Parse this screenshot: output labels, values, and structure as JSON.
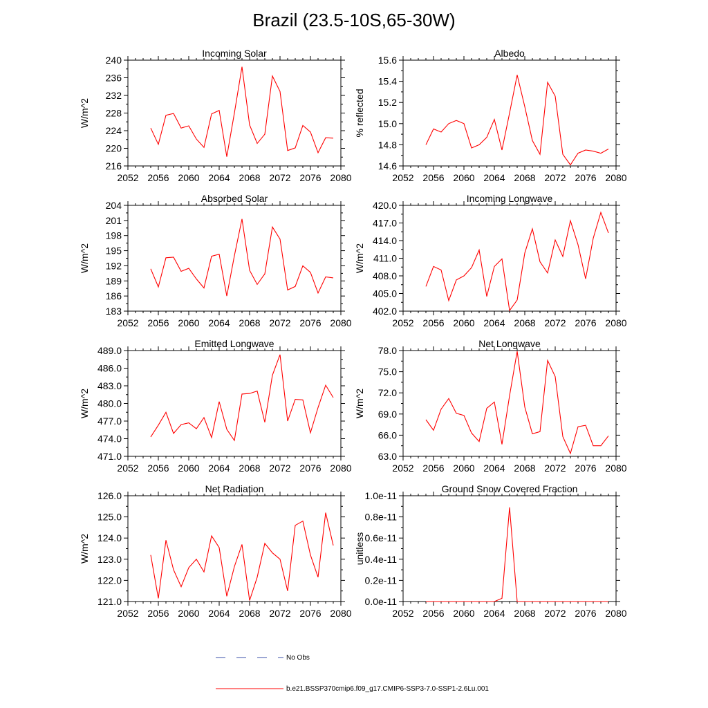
{
  "title": "Brazil (23.5-10S,65-30W)",
  "legend": {
    "no_obs_label": "No Obs",
    "no_obs_color": "#3a4fa8",
    "model_label": "b.e21.BSSP370cmip6.f09_g17.CMIP6-SSP3-7.0-SSP1-2.6Lu.001",
    "model_color": "#ff0000"
  },
  "chart_data": [
    {
      "type": "line",
      "title": "Incoming Solar",
      "ylabel": "W/m^2",
      "xlim": [
        2052,
        2080
      ],
      "ylim": [
        216,
        240
      ],
      "xticks": [
        2052,
        2056,
        2060,
        2064,
        2068,
        2072,
        2076,
        2080
      ],
      "yticks": [
        "216",
        "220",
        "224",
        "228",
        "232",
        "236",
        "240"
      ],
      "series": [
        {
          "x": [
            2055,
            2056,
            2057,
            2058,
            2059,
            2060,
            2061,
            2062,
            2063,
            2064,
            2065,
            2066,
            2067,
            2068,
            2069,
            2070,
            2071,
            2072,
            2073,
            2074,
            2075,
            2076,
            2077,
            2078,
            2079
          ],
          "values": [
            224.6,
            220.9,
            227.5,
            227.9,
            224.6,
            225.1,
            222.1,
            220.2,
            227.8,
            228.6,
            218.1,
            228.0,
            238.5,
            225.3,
            221.1,
            223.2,
            236.4,
            232.9,
            219.5,
            220.1,
            225.2,
            223.7,
            219.0,
            222.4,
            222.3
          ]
        }
      ]
    },
    {
      "type": "line",
      "title": "Albedo",
      "ylabel": "% reflected",
      "xlim": [
        2052,
        2080
      ],
      "ylim": [
        14.6,
        15.6
      ],
      "xticks": [
        2052,
        2056,
        2060,
        2064,
        2068,
        2072,
        2076,
        2080
      ],
      "yticks": [
        "14.6",
        "14.8",
        "15.0",
        "15.2",
        "15.4",
        "15.6"
      ],
      "series": [
        {
          "x": [
            2055,
            2056,
            2057,
            2058,
            2059,
            2060,
            2061,
            2062,
            2063,
            2064,
            2065,
            2066,
            2067,
            2068,
            2069,
            2070,
            2071,
            2072,
            2073,
            2074,
            2075,
            2076,
            2077,
            2078,
            2079
          ],
          "values": [
            14.8,
            14.95,
            14.92,
            15.0,
            15.03,
            15.0,
            14.77,
            14.8,
            14.87,
            15.04,
            14.75,
            15.1,
            15.46,
            15.16,
            14.84,
            14.71,
            15.39,
            15.26,
            14.71,
            14.61,
            14.72,
            14.75,
            14.74,
            14.72,
            14.76
          ]
        }
      ]
    },
    {
      "type": "line",
      "title": "Absorbed Solar",
      "ylabel": "W/m^2",
      "xlim": [
        2052,
        2080
      ],
      "ylim": [
        183,
        204
      ],
      "xticks": [
        2052,
        2056,
        2060,
        2064,
        2068,
        2072,
        2076,
        2080
      ],
      "yticks": [
        "183",
        "186",
        "189",
        "192",
        "195",
        "198",
        "201",
        "204"
      ],
      "series": [
        {
          "x": [
            2055,
            2056,
            2057,
            2058,
            2059,
            2060,
            2061,
            2062,
            2063,
            2064,
            2065,
            2066,
            2067,
            2068,
            2069,
            2070,
            2071,
            2072,
            2073,
            2074,
            2075,
            2076,
            2077,
            2078,
            2079
          ],
          "values": [
            191.4,
            187.8,
            193.6,
            193.7,
            190.9,
            191.5,
            189.4,
            187.6,
            193.9,
            194.3,
            186.0,
            194.0,
            201.3,
            191.1,
            188.3,
            190.4,
            199.7,
            197.3,
            187.2,
            187.9,
            192.0,
            190.7,
            186.6,
            189.8,
            189.6
          ]
        }
      ]
    },
    {
      "type": "line",
      "title": "Incoming Longwave",
      "ylabel": "W/m^2",
      "xlim": [
        2052,
        2080
      ],
      "ylim": [
        402,
        420
      ],
      "xticks": [
        2052,
        2056,
        2060,
        2064,
        2068,
        2072,
        2076,
        2080
      ],
      "yticks": [
        "402.0",
        "405.0",
        "408.0",
        "411.0",
        "414.0",
        "417.0",
        "420.0"
      ],
      "series": [
        {
          "x": [
            2055,
            2056,
            2057,
            2058,
            2059,
            2060,
            2061,
            2062,
            2063,
            2064,
            2065,
            2066,
            2067,
            2068,
            2069,
            2070,
            2071,
            2072,
            2073,
            2074,
            2075,
            2076,
            2077,
            2078,
            2079
          ],
          "values": [
            406.2,
            409.6,
            409.0,
            403.8,
            407.3,
            408.0,
            409.4,
            412.4,
            404.5,
            409.6,
            410.9,
            402.1,
            403.9,
            411.9,
            416.0,
            410.4,
            408.5,
            414.1,
            411.3,
            417.4,
            413.3,
            407.5,
            414.4,
            418.8,
            415.3
          ]
        }
      ]
    },
    {
      "type": "line",
      "title": "Emitted Longwave",
      "ylabel": "W/m^2",
      "xlim": [
        2052,
        2080
      ],
      "ylim": [
        471,
        489
      ],
      "xticks": [
        2052,
        2056,
        2060,
        2064,
        2068,
        2072,
        2076,
        2080
      ],
      "yticks": [
        "471.0",
        "474.0",
        "477.0",
        "480.0",
        "483.0",
        "486.0",
        "489.0"
      ],
      "series": [
        {
          "x": [
            2055,
            2056,
            2057,
            2058,
            2059,
            2060,
            2061,
            2062,
            2063,
            2064,
            2065,
            2066,
            2067,
            2068,
            2069,
            2070,
            2071,
            2072,
            2073,
            2074,
            2075,
            2076,
            2077,
            2078,
            2079
          ],
          "values": [
            474.3,
            476.3,
            478.5,
            474.9,
            476.4,
            476.7,
            475.7,
            477.6,
            474.2,
            480.3,
            475.6,
            473.7,
            481.6,
            481.7,
            482.1,
            476.8,
            484.8,
            488.3,
            477.0,
            480.7,
            480.6,
            475.0,
            479.3,
            483.1,
            481.0
          ]
        }
      ]
    },
    {
      "type": "line",
      "title": "Net Longwave",
      "ylabel": "W/m^2",
      "xlim": [
        2052,
        2080
      ],
      "ylim": [
        63,
        78
      ],
      "xticks": [
        2052,
        2056,
        2060,
        2064,
        2068,
        2072,
        2076,
        2080
      ],
      "yticks": [
        "63.0",
        "66.0",
        "69.0",
        "72.0",
        "75.0",
        "78.0"
      ],
      "series": [
        {
          "x": [
            2055,
            2056,
            2057,
            2058,
            2059,
            2060,
            2061,
            2062,
            2063,
            2064,
            2065,
            2066,
            2067,
            2068,
            2069,
            2070,
            2071,
            2072,
            2073,
            2074,
            2075,
            2076,
            2077,
            2078,
            2079
          ],
          "values": [
            68.2,
            66.7,
            69.7,
            71.2,
            69.1,
            68.8,
            66.3,
            65.1,
            69.8,
            70.7,
            64.7,
            71.6,
            77.9,
            70.0,
            66.2,
            66.5,
            76.6,
            74.3,
            65.8,
            63.4,
            67.2,
            67.4,
            64.5,
            64.5,
            65.9
          ]
        }
      ]
    },
    {
      "type": "line",
      "title": "Net Radiation",
      "ylabel": "W/m^2",
      "xlim": [
        2052,
        2080
      ],
      "ylim": [
        121,
        126
      ],
      "xticks": [
        2052,
        2056,
        2060,
        2064,
        2068,
        2072,
        2076,
        2080
      ],
      "yticks": [
        "121.0",
        "122.0",
        "123.0",
        "124.0",
        "125.0",
        "126.0"
      ],
      "series": [
        {
          "x": [
            2055,
            2056,
            2057,
            2058,
            2059,
            2060,
            2061,
            2062,
            2063,
            2064,
            2065,
            2066,
            2067,
            2068,
            2069,
            2070,
            2071,
            2072,
            2073,
            2074,
            2075,
            2076,
            2077,
            2078,
            2079
          ],
          "values": [
            123.2,
            121.15,
            123.9,
            122.5,
            121.7,
            122.6,
            123.0,
            122.4,
            124.1,
            123.55,
            121.25,
            122.65,
            123.7,
            121.05,
            122.15,
            123.75,
            123.3,
            123.0,
            121.5,
            124.6,
            124.8,
            123.2,
            122.15,
            125.2,
            123.65
          ]
        }
      ]
    },
    {
      "type": "line",
      "title": "Ground Snow Covered Fraction",
      "ylabel": "unitless",
      "xlim": [
        2052,
        2080
      ],
      "ylim": [
        0,
        1e-11
      ],
      "xticks": [
        2052,
        2056,
        2060,
        2064,
        2068,
        2072,
        2076,
        2080
      ],
      "yticks": [
        "0.0e-11",
        "0.2e-11",
        "0.4e-11",
        "0.6e-11",
        "0.8e-11",
        "1.0e-11"
      ],
      "series": [
        {
          "x": [
            2055,
            2056,
            2057,
            2058,
            2059,
            2060,
            2061,
            2062,
            2063,
            2064,
            2065,
            2066,
            2067,
            2068,
            2069,
            2070,
            2071,
            2072,
            2073,
            2074,
            2075,
            2076,
            2077,
            2078,
            2079
          ],
          "values": [
            0,
            0,
            0,
            0,
            0,
            0,
            0,
            0,
            0,
            0,
            3e-13,
            8.9e-12,
            0,
            0,
            0,
            0,
            0,
            0,
            0,
            0,
            0,
            0,
            0,
            0,
            0
          ]
        }
      ]
    }
  ]
}
